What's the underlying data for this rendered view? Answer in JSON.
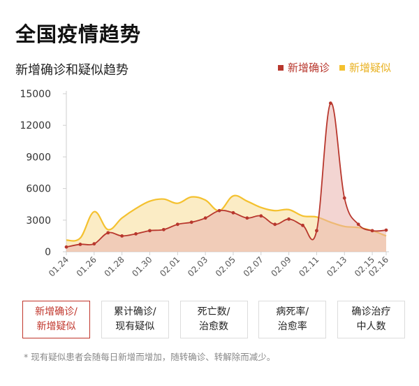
{
  "page": {
    "title": "全国疫情趋势"
  },
  "chart": {
    "subtitle": "新增确诊和疑似趋势"
  },
  "legend": {
    "items": [
      {
        "label": "新增确诊",
        "color": "#b8372d"
      },
      {
        "label": "新增疑似",
        "color": "#f4c12f"
      }
    ]
  },
  "tabs": [
    {
      "label": "新增确诊/\n新增疑似",
      "active": true
    },
    {
      "label": "累计确诊/\n现有疑似",
      "active": false
    },
    {
      "label": "死亡数/\n治愈数",
      "active": false
    },
    {
      "label": "病死率/\n治愈率",
      "active": false
    },
    {
      "label": "确诊治疗\n中人数",
      "active": false
    }
  ],
  "footnote": "* 现有疑似患者会随每日新增而增加，随转确诊、转解除而减少。",
  "colors": {
    "confirmed_line": "#b8372d",
    "confirmed_fill": "#e9b3ad",
    "suspected_line": "#f4c12f",
    "suspected_fill": "#f8dd95",
    "axis": "#cfcfcf",
    "tick_text": "#333333",
    "active_tab": "#c0352b"
  },
  "chart_data": {
    "type": "area",
    "title": "新增确诊和疑似趋势",
    "ylim": [
      0,
      15000
    ],
    "yticks": [
      0,
      3000,
      6000,
      9000,
      12000,
      15000
    ],
    "ytick_labels": [
      "0",
      "3000",
      "6000",
      "9000",
      "12000",
      "15000"
    ],
    "x": [
      "01.24",
      "01.25",
      "01.26",
      "01.27",
      "01.28",
      "01.29",
      "01.30",
      "01.31",
      "02.01",
      "02.02",
      "02.03",
      "02.04",
      "02.05",
      "02.06",
      "02.07",
      "02.08",
      "02.09",
      "02.10",
      "02.11",
      "02.12",
      "02.13",
      "02.14",
      "02.15",
      "02.16"
    ],
    "xtick_labels": [
      "01.24",
      "01.26",
      "01.28",
      "01.30",
      "02.01",
      "02.03",
      "02.05",
      "02.07",
      "02.09",
      "02.11",
      "02.13",
      "02.15",
      "02.16"
    ],
    "xtick_indices": [
      0,
      2,
      4,
      6,
      8,
      10,
      12,
      14,
      16,
      18,
      20,
      22,
      23
    ],
    "legend_position": "top-right",
    "grid": false,
    "series": [
      {
        "name": "新增确诊",
        "values": [
          450,
          700,
          750,
          1800,
          1500,
          1700,
          2000,
          2100,
          2600,
          2800,
          3200,
          3900,
          3700,
          3200,
          3400,
          2600,
          3100,
          2500,
          2000,
          14100,
          5100,
          2600,
          2000,
          2050
        ]
      },
      {
        "name": "新增疑似",
        "values": [
          1100,
          1300,
          3800,
          2100,
          3200,
          4100,
          4800,
          5000,
          4600,
          5200,
          4900,
          3900,
          5300,
          4800,
          4200,
          3900,
          4000,
          3400,
          3300,
          2800,
          2400,
          2300,
          2000,
          1500
        ]
      }
    ]
  }
}
